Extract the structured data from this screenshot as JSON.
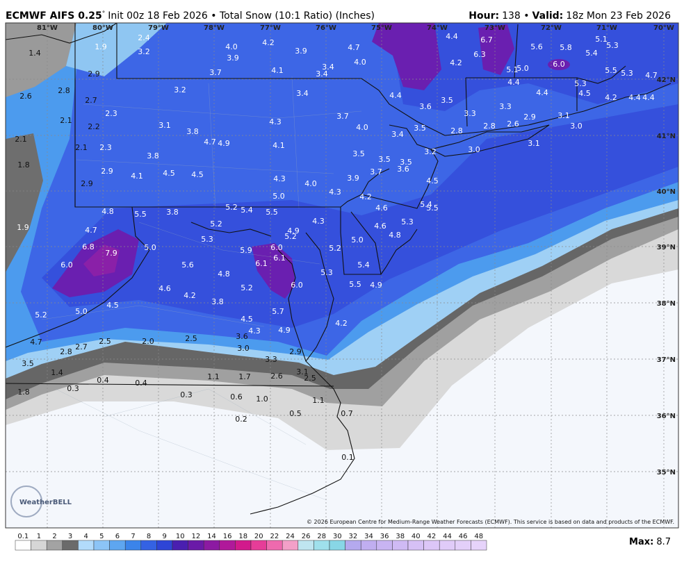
{
  "header": {
    "model": "ECMWF AIFS 0.25",
    "degree": "°",
    "description": "Init 00z 18 Feb 2026 • Total Snow (10:1 Ratio) (Inches)",
    "hour_label": "Hour:",
    "hour": "138 •",
    "valid_label": "Valid:",
    "valid": "18z Mon 23 Feb 2026"
  },
  "map": {
    "lon_labels": [
      "81°W",
      "80°W",
      "79°W",
      "78°W",
      "77°W",
      "76°W",
      "75°W",
      "74°W",
      "73°W",
      "72°W",
      "71°W",
      "70°W"
    ],
    "lat_labels": [
      "42°N",
      "41°N",
      "40°N",
      "39°N",
      "38°N",
      "37°N",
      "36°N",
      "35°N"
    ],
    "points": [
      "1.4",
      "1.9",
      "2.4",
      "3.2",
      "4.0",
      "4.2",
      "3.9",
      "3.9",
      "4.7",
      "4.0",
      "3.4",
      "4.1",
      "3.4",
      "3.7",
      "2.9",
      "2.8",
      "2.6",
      "2.7",
      "3.2",
      "3.4",
      "2.3",
      "2.1",
      "2.2",
      "3.1",
      "3.8",
      "4.3",
      "3.7",
      "4.0",
      "2.1",
      "4.7",
      "4.9",
      "4.1",
      "3.4",
      "3.5",
      "2.1",
      "2.3",
      "3.8",
      "3.5",
      "3.5",
      "3.5",
      "1.8",
      "2.9",
      "4.5",
      "4.5",
      "4.1",
      "4.3",
      "4.0",
      "3.9",
      "3.7",
      "3.6",
      "4.5",
      "2.9",
      "4.3",
      "5.0",
      "4.2",
      "5.4",
      "5.5",
      "4.6",
      "4.8",
      "5.5",
      "3.8",
      "5.2",
      "5.4",
      "5.5",
      "4.3",
      "5.2",
      "5.3",
      "4.6",
      "1.9",
      "4.7",
      "4.9",
      "5.2",
      "5.3",
      "5.0",
      "4.8",
      "5.0",
      "6.8",
      "7.9",
      "5.9",
      "6.0",
      "5.2",
      "6.1",
      "6.1",
      "6.0",
      "5.6",
      "5.4",
      "4.8",
      "5.3",
      "6.0",
      "5.5",
      "4.9",
      "4.6",
      "5.2",
      "4.2",
      "3.8",
      "4.5",
      "5.2",
      "5.0",
      "5.7",
      "4.5",
      "4.2",
      "4.3",
      "4.9",
      "3.6",
      "4.7",
      "2.5",
      "2.0",
      "2.5",
      "2.7",
      "2.8",
      "3.0",
      "2.9",
      "3.5",
      "3.3",
      "1.4",
      "1.1",
      "1.7",
      "2.6",
      "3.1",
      "2.5",
      "0.4",
      "0.4",
      "0.3",
      "1.8",
      "0.3",
      "0.6",
      "1.0",
      "1.1",
      "0.5",
      "0.7",
      "0.2",
      "0.1",
      "4.4",
      "6.7",
      "6.3",
      "4.2",
      "5.6",
      "5.8",
      "5.1",
      "5.3",
      "5.4",
      "5.1",
      "5.0",
      "6.0",
      "5.5",
      "5.3",
      "4.7",
      "4.4",
      "5.3",
      "4.4",
      "4.5",
      "4.2",
      "4.4",
      "4.4",
      "4.4",
      "3.6",
      "3.5",
      "3.3",
      "3.3",
      "2.8",
      "2.8",
      "2.6",
      "2.9",
      "3.1",
      "3.0",
      "3.0",
      "3.2",
      "3.1"
    ],
    "logo": "WeatherBELL",
    "copyright": "© 2026 European Centre for Medium-Range Weather Forecasts (ECMWF). This service is based on data and products of the ECMWF."
  },
  "colorbar": {
    "labels": [
      "0.1",
      "1",
      "2",
      "3",
      "4",
      "5",
      "6",
      "7",
      "8",
      "9",
      "10",
      "12",
      "14",
      "16",
      "18",
      "20",
      "22",
      "24",
      "26",
      "28",
      "30",
      "32",
      "34",
      "36",
      "38",
      "40",
      "42",
      "44",
      "46",
      "48"
    ],
    "colors": [
      "#ffffff",
      "#d6d6d6",
      "#a3a3a3",
      "#6b6b6b",
      "#b2dbfb",
      "#8cc4f6",
      "#5ea6f0",
      "#3b84ea",
      "#3462e3",
      "#2e45d6",
      "#4a1fb0",
      "#6a1aa8",
      "#8c1aa2",
      "#b0199a",
      "#d21a8c",
      "#e63d98",
      "#ee6aae",
      "#f3a0c8",
      "#bfe5f0",
      "#9fe0ec",
      "#88d6e6",
      "#b4a9ee",
      "#c0aef0",
      "#c8b4f2",
      "#cfbaf4",
      "#d6c0f6",
      "#dcc6f7",
      "#e0cbf8",
      "#e3cff9",
      "#e6d3fa"
    ],
    "max_label": "Max:",
    "max": "8.7"
  }
}
